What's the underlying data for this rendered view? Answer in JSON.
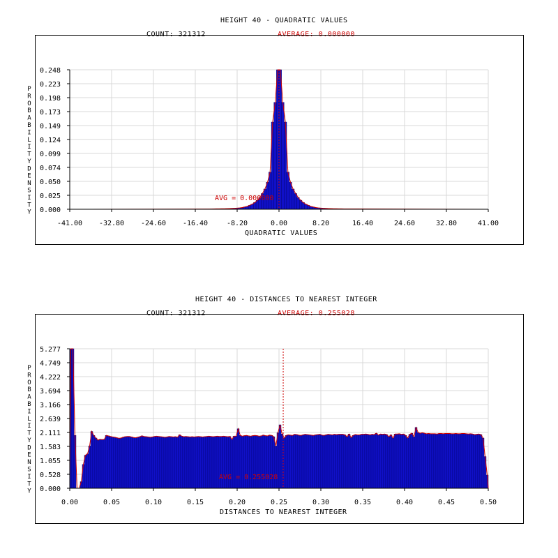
{
  "chart_data": [
    {
      "type": "bar",
      "title": "HEIGHT 40 - QUADRATIC VALUES",
      "count_label": "COUNT: 321312",
      "average_label": "AVERAGE: 0.000000",
      "avg_annotation": "AVG = 0.000000",
      "xlabel": "QUADRATIC VALUES",
      "ylabel": "PROBABILITY DENSITY",
      "xlim": [
        -41.0,
        41.0
      ],
      "ylim": [
        0.0,
        0.248
      ],
      "x_ticks": [
        "-41.00",
        "-32.80",
        "-24.60",
        "-16.40",
        "-8.20",
        "0.00",
        "8.20",
        "16.40",
        "24.60",
        "32.80",
        "41.00"
      ],
      "y_ticks": [
        "0.000",
        "0.025",
        "0.050",
        "0.074",
        "0.099",
        "0.124",
        "0.149",
        "0.173",
        "0.198",
        "0.223",
        "0.248"
      ],
      "avg_value": 0.0,
      "grid": true,
      "bar_width": 0.5,
      "x": [
        -13.25,
        -12.75,
        -12.25,
        -11.75,
        -11.25,
        -10.75,
        -10.25,
        -9.75,
        -9.25,
        -8.75,
        -8.25,
        -7.75,
        -7.25,
        -6.75,
        -6.25,
        -5.75,
        -5.25,
        -4.75,
        -4.25,
        -3.75,
        -3.25,
        -2.75,
        -2.25,
        -1.75,
        -1.25,
        -0.75,
        -0.25,
        0.25,
        0.75,
        1.25,
        1.75,
        2.25,
        2.75,
        3.25,
        3.75,
        4.25,
        4.75,
        5.25,
        5.75,
        6.25,
        6.75,
        7.25,
        7.75,
        8.25,
        8.75,
        9.25,
        9.75,
        10.25,
        10.75,
        11.25,
        11.75,
        12.25,
        12.75
      ],
      "values": [
        0.0005,
        0.0006,
        0.0007,
        0.0008,
        0.0009,
        0.001,
        0.0011,
        0.0013,
        0.0015,
        0.0017,
        0.002,
        0.0024,
        0.003,
        0.004,
        0.005,
        0.007,
        0.009,
        0.012,
        0.016,
        0.021,
        0.028,
        0.036,
        0.048,
        0.066,
        0.155,
        0.19,
        0.248,
        0.248,
        0.19,
        0.155,
        0.066,
        0.048,
        0.036,
        0.028,
        0.021,
        0.016,
        0.012,
        0.009,
        0.007,
        0.005,
        0.004,
        0.003,
        0.0024,
        0.002,
        0.0017,
        0.0015,
        0.0013,
        0.0011,
        0.001,
        0.0009,
        0.0008,
        0.0007,
        0.0006
      ]
    },
    {
      "type": "bar",
      "title": "HEIGHT 40 - DISTANCES TO NEAREST INTEGER",
      "count_label": "COUNT: 321312",
      "average_label": "AVERAGE: 0.255028",
      "avg_annotation": "AVG = 0.255028",
      "xlabel": "DISTANCES TO NEAREST INTEGER",
      "ylabel": "PROBABILITY DENSITY",
      "xlim": [
        0.0,
        0.5
      ],
      "ylim": [
        0.0,
        5.277
      ],
      "x_ticks": [
        "0.00",
        "0.05",
        "0.10",
        "0.15",
        "0.20",
        "0.25",
        "0.30",
        "0.35",
        "0.40",
        "0.45",
        "0.50"
      ],
      "y_ticks": [
        "0.000",
        "0.528",
        "1.055",
        "1.583",
        "2.111",
        "2.639",
        "3.166",
        "3.694",
        "4.222",
        "4.749",
        "5.277"
      ],
      "avg_value": 0.255028,
      "grid": true,
      "bar_width": 0.0025,
      "x": [
        0.00125,
        0.00375,
        0.00625,
        0.00875,
        0.01125,
        0.01375,
        0.01625,
        0.01875,
        0.02125,
        0.02375,
        0.02625,
        0.02875,
        0.03125,
        0.03375,
        0.03625,
        0.03875,
        0.04125,
        0.04375,
        0.04625,
        0.04875,
        0.05125,
        0.05375,
        0.05625,
        0.05875,
        0.06125,
        0.06375,
        0.06625,
        0.06875,
        0.07125,
        0.07375,
        0.07625,
        0.07875,
        0.08125,
        0.08375,
        0.08625,
        0.08875,
        0.09125,
        0.09375,
        0.09625,
        0.09875,
        0.10125,
        0.10375,
        0.10625,
        0.10875,
        0.11125,
        0.11375,
        0.11625,
        0.11875,
        0.12125,
        0.12375,
        0.12625,
        0.12875,
        0.13125,
        0.13375,
        0.13625,
        0.13875,
        0.14125,
        0.14375,
        0.14625,
        0.14875,
        0.15125,
        0.15375,
        0.15625,
        0.15875,
        0.16125,
        0.16375,
        0.16625,
        0.16875,
        0.17125,
        0.17375,
        0.17625,
        0.17875,
        0.18125,
        0.18375,
        0.18625,
        0.18875,
        0.19125,
        0.19375,
        0.19625,
        0.19875,
        0.20125,
        0.20375,
        0.20625,
        0.20875,
        0.21125,
        0.21375,
        0.21625,
        0.21875,
        0.22125,
        0.22375,
        0.22625,
        0.22875,
        0.23125,
        0.23375,
        0.23625,
        0.23875,
        0.24125,
        0.24375,
        0.24625,
        0.24875,
        0.25125,
        0.25375,
        0.25625,
        0.25875,
        0.26125,
        0.26375,
        0.26625,
        0.26875,
        0.27125,
        0.27375,
        0.27625,
        0.27875,
        0.28125,
        0.28375,
        0.28625,
        0.28875,
        0.29125,
        0.29375,
        0.29625,
        0.29875,
        0.30125,
        0.30375,
        0.30625,
        0.30875,
        0.31125,
        0.31375,
        0.31625,
        0.31875,
        0.32125,
        0.32375,
        0.32625,
        0.32875,
        0.33125,
        0.33375,
        0.33625,
        0.33875,
        0.34125,
        0.34375,
        0.34625,
        0.34875,
        0.35125,
        0.35375,
        0.35625,
        0.35875,
        0.36125,
        0.36375,
        0.36625,
        0.36875,
        0.37125,
        0.37375,
        0.37625,
        0.37875,
        0.38125,
        0.38375,
        0.38625,
        0.38875,
        0.39125,
        0.39375,
        0.39625,
        0.39875,
        0.40125,
        0.40375,
        0.40625,
        0.40875,
        0.41125,
        0.41375,
        0.41625,
        0.41875,
        0.42125,
        0.42375,
        0.42625,
        0.42875,
        0.43125,
        0.43375,
        0.43625,
        0.43875,
        0.44125,
        0.44375,
        0.44625,
        0.44875,
        0.45125,
        0.45375,
        0.45625,
        0.45875,
        0.46125,
        0.46375,
        0.46625,
        0.46875,
        0.47125,
        0.47375,
        0.47625,
        0.47875,
        0.48125,
        0.48375,
        0.48625,
        0.48875,
        0.49125,
        0.49375,
        0.49625,
        0.49875
      ],
      "values": [
        5.277,
        5.277,
        2.0,
        0.0,
        0.0,
        0.25,
        0.9,
        1.25,
        1.3,
        1.6,
        2.15,
        2.0,
        1.9,
        1.82,
        1.85,
        1.84,
        1.85,
        2.0,
        1.98,
        1.96,
        1.94,
        1.93,
        1.91,
        1.89,
        1.9,
        1.93,
        1.95,
        1.96,
        1.96,
        1.94,
        1.92,
        1.91,
        1.93,
        1.95,
        1.98,
        1.96,
        1.95,
        1.94,
        1.93,
        1.94,
        1.96,
        1.97,
        1.96,
        1.95,
        1.94,
        1.93,
        1.94,
        1.96,
        1.95,
        1.94,
        1.95,
        1.93,
        2.02,
        1.97,
        1.95,
        1.96,
        1.95,
        1.94,
        1.95,
        1.94,
        1.95,
        1.96,
        1.95,
        1.94,
        1.95,
        1.96,
        1.97,
        1.96,
        1.95,
        1.96,
        1.97,
        1.96,
        1.96,
        1.97,
        1.96,
        1.95,
        1.96,
        1.85,
        1.97,
        1.97,
        2.25,
        2.0,
        1.97,
        1.99,
        2.0,
        1.98,
        1.97,
        1.99,
        2.0,
        1.99,
        1.97,
        1.98,
        2.01,
        1.99,
        1.98,
        2.01,
        2.0,
        1.95,
        1.6,
        2.1,
        2.4,
        2.05,
        1.9,
        2.0,
        2.02,
        2.01,
        2.0,
        2.04,
        2.03,
        2.01,
        2.0,
        2.02,
        2.04,
        2.03,
        2.02,
        2.01,
        2.0,
        2.02,
        2.03,
        2.04,
        2.01,
        2.0,
        2.02,
        2.04,
        2.03,
        2.02,
        2.04,
        2.03,
        2.04,
        2.04,
        2.04,
        2.02,
        1.95,
        2.05,
        1.92,
        2.0,
        2.03,
        2.02,
        2.02,
        2.04,
        2.04,
        2.05,
        2.04,
        2.02,
        2.04,
        2.03,
        2.08,
        2.01,
        2.05,
        2.04,
        2.05,
        2.03,
        1.95,
        2.02,
        1.9,
        2.05,
        2.05,
        2.06,
        2.04,
        2.05,
        2.0,
        1.9,
        2.04,
        2.08,
        1.95,
        2.3,
        2.11,
        2.08,
        2.1,
        2.08,
        2.06,
        2.07,
        2.06,
        2.06,
        2.06,
        2.05,
        2.07,
        2.07,
        2.06,
        2.07,
        2.07,
        2.07,
        2.06,
        2.06,
        2.07,
        2.06,
        2.06,
        2.07,
        2.07,
        2.06,
        2.05,
        2.06,
        2.05,
        2.03,
        2.04,
        2.05,
        2.03,
        1.9,
        1.2,
        0.5
      ]
    }
  ]
}
